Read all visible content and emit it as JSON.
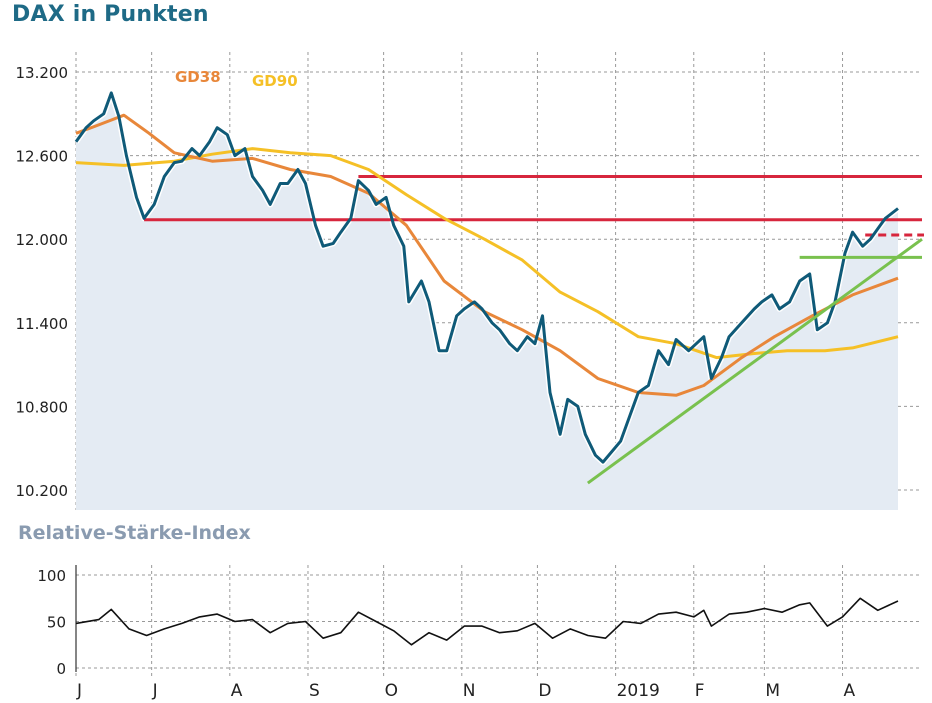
{
  "title": "DAX in Punkten",
  "rsi_title": "Relative-Stärke-Index",
  "colors": {
    "dax": "#0f5a78",
    "gd38": "#e8873a",
    "gd90": "#f5c026",
    "resistance": "#d7263d",
    "support": "#79c14e",
    "fill": "#e4ebf3"
  },
  "chart_data": [
    {
      "type": "line",
      "title": "DAX in Punkten",
      "x_range": [
        "2018-06-01",
        "2019-04-23"
      ],
      "ylim": [
        10200,
        13200
      ],
      "yticks": [
        10200,
        10800,
        11400,
        12000,
        12600,
        13200
      ],
      "ytick_labels": [
        "10.200",
        "10.800",
        "11.400",
        "12.000",
        "12.600",
        "13.200"
      ],
      "xtick_labels": [
        {
          "date": "2018-06-01",
          "label": "J"
        },
        {
          "date": "2018-07-01",
          "label": "J"
        },
        {
          "date": "2018-08-01",
          "label": "A"
        },
        {
          "date": "2018-09-01",
          "label": "S"
        },
        {
          "date": "2018-10-01",
          "label": "O"
        },
        {
          "date": "2018-11-01",
          "label": "N"
        },
        {
          "date": "2018-12-01",
          "label": "D"
        },
        {
          "date": "2019-01-01",
          "label": "2019"
        },
        {
          "date": "2019-02-01",
          "label": "F"
        },
        {
          "date": "2019-03-01",
          "label": "M"
        },
        {
          "date": "2019-04-01",
          "label": "A"
        }
      ],
      "grid": true,
      "series": [
        {
          "name": "DAX",
          "points": [
            [
              "2018-06-01",
              12700
            ],
            [
              "2018-06-05",
              12800
            ],
            [
              "2018-06-08",
              12850
            ],
            [
              "2018-06-12",
              12900
            ],
            [
              "2018-06-15",
              13050
            ],
            [
              "2018-06-18",
              12880
            ],
            [
              "2018-06-21",
              12600
            ],
            [
              "2018-06-25",
              12300
            ],
            [
              "2018-06-28",
              12150
            ],
            [
              "2018-07-02",
              12250
            ],
            [
              "2018-07-06",
              12450
            ],
            [
              "2018-07-10",
              12550
            ],
            [
              "2018-07-13",
              12560
            ],
            [
              "2018-07-17",
              12650
            ],
            [
              "2018-07-20",
              12600
            ],
            [
              "2018-07-24",
              12700
            ],
            [
              "2018-07-27",
              12800
            ],
            [
              "2018-07-31",
              12750
            ],
            [
              "2018-08-03",
              12600
            ],
            [
              "2018-08-07",
              12650
            ],
            [
              "2018-08-10",
              12450
            ],
            [
              "2018-08-14",
              12350
            ],
            [
              "2018-08-17",
              12250
            ],
            [
              "2018-08-21",
              12400
            ],
            [
              "2018-08-24",
              12400
            ],
            [
              "2018-08-28",
              12500
            ],
            [
              "2018-08-31",
              12400
            ],
            [
              "2018-09-04",
              12100
            ],
            [
              "2018-09-07",
              11950
            ],
            [
              "2018-09-11",
              11970
            ],
            [
              "2018-09-14",
              12050
            ],
            [
              "2018-09-18",
              12150
            ],
            [
              "2018-09-21",
              12420
            ],
            [
              "2018-09-25",
              12350
            ],
            [
              "2018-09-28",
              12250
            ],
            [
              "2018-10-02",
              12300
            ],
            [
              "2018-10-05",
              12100
            ],
            [
              "2018-10-09",
              11950
            ],
            [
              "2018-10-11",
              11550
            ],
            [
              "2018-10-16",
              11700
            ],
            [
              "2018-10-19",
              11550
            ],
            [
              "2018-10-23",
              11200
            ],
            [
              "2018-10-26",
              11200
            ],
            [
              "2018-10-30",
              11450
            ],
            [
              "2018-11-02",
              11500
            ],
            [
              "2018-11-06",
              11550
            ],
            [
              "2018-11-09",
              11500
            ],
            [
              "2018-11-13",
              11400
            ],
            [
              "2018-11-16",
              11350
            ],
            [
              "2018-11-20",
              11250
            ],
            [
              "2018-11-23",
              11200
            ],
            [
              "2018-11-27",
              11300
            ],
            [
              "2018-11-30",
              11250
            ],
            [
              "2018-12-03",
              11450
            ],
            [
              "2018-12-06",
              10900
            ],
            [
              "2018-12-10",
              10600
            ],
            [
              "2018-12-13",
              10850
            ],
            [
              "2018-12-17",
              10800
            ],
            [
              "2018-12-20",
              10600
            ],
            [
              "2018-12-24",
              10450
            ],
            [
              "2018-12-27",
              10400
            ],
            [
              "2019-01-03",
              10550
            ],
            [
              "2019-01-07",
              10750
            ],
            [
              "2019-01-10",
              10900
            ],
            [
              "2019-01-14",
              10950
            ],
            [
              "2019-01-18",
              11200
            ],
            [
              "2019-01-22",
              11100
            ],
            [
              "2019-01-25",
              11280
            ],
            [
              "2019-01-30",
              11200
            ],
            [
              "2019-02-05",
              11300
            ],
            [
              "2019-02-08",
              11000
            ],
            [
              "2019-02-12",
              11150
            ],
            [
              "2019-02-15",
              11300
            ],
            [
              "2019-02-20",
              11400
            ],
            [
              "2019-02-25",
              11500
            ],
            [
              "2019-02-28",
              11550
            ],
            [
              "2019-03-04",
              11600
            ],
            [
              "2019-03-07",
              11500
            ],
            [
              "2019-03-11",
              11550
            ],
            [
              "2019-03-15",
              11700
            ],
            [
              "2019-03-19",
              11750
            ],
            [
              "2019-03-22",
              11350
            ],
            [
              "2019-03-26",
              11400
            ],
            [
              "2019-03-29",
              11550
            ],
            [
              "2019-04-02",
              11900
            ],
            [
              "2019-04-05",
              12050
            ],
            [
              "2019-04-09",
              11950
            ],
            [
              "2019-04-12",
              12000
            ],
            [
              "2019-04-16",
              12100
            ],
            [
              "2019-04-18",
              12150
            ],
            [
              "2019-04-23",
              12220
            ]
          ]
        },
        {
          "name": "GD38",
          "points": [
            [
              "2018-06-01",
              12760
            ],
            [
              "2018-06-10",
              12820
            ],
            [
              "2018-06-20",
              12890
            ],
            [
              "2018-06-30",
              12760
            ],
            [
              "2018-07-10",
              12620
            ],
            [
              "2018-07-25",
              12560
            ],
            [
              "2018-08-10",
              12580
            ],
            [
              "2018-08-25",
              12500
            ],
            [
              "2018-09-10",
              12450
            ],
            [
              "2018-09-25",
              12330
            ],
            [
              "2018-10-10",
              12100
            ],
            [
              "2018-10-25",
              11700
            ],
            [
              "2018-11-10",
              11480
            ],
            [
              "2018-11-25",
              11350
            ],
            [
              "2018-12-10",
              11200
            ],
            [
              "2018-12-25",
              11000
            ],
            [
              "2019-01-10",
              10900
            ],
            [
              "2019-01-25",
              10880
            ],
            [
              "2019-02-05",
              10950
            ],
            [
              "2019-02-20",
              11150
            ],
            [
              "2019-03-05",
              11300
            ],
            [
              "2019-03-20",
              11450
            ],
            [
              "2019-04-05",
              11600
            ],
            [
              "2019-04-23",
              11720
            ]
          ]
        },
        {
          "name": "GD90",
          "points": [
            [
              "2018-06-01",
              12550
            ],
            [
              "2018-06-20",
              12530
            ],
            [
              "2018-07-10",
              12560
            ],
            [
              "2018-07-25",
              12610
            ],
            [
              "2018-08-10",
              12650
            ],
            [
              "2018-08-25",
              12620
            ],
            [
              "2018-09-10",
              12600
            ],
            [
              "2018-09-25",
              12500
            ],
            [
              "2018-10-10",
              12320
            ],
            [
              "2018-10-25",
              12150
            ],
            [
              "2018-11-10",
              12000
            ],
            [
              "2018-11-25",
              11850
            ],
            [
              "2018-12-10",
              11620
            ],
            [
              "2018-12-25",
              11480
            ],
            [
              "2019-01-10",
              11300
            ],
            [
              "2019-01-25",
              11250
            ],
            [
              "2019-02-10",
              11150
            ],
            [
              "2019-02-25",
              11180
            ],
            [
              "2019-03-10",
              11200
            ],
            [
              "2019-03-25",
              11200
            ],
            [
              "2019-04-05",
              11220
            ],
            [
              "2019-04-23",
              11300
            ]
          ]
        }
      ],
      "resistance_lines": [
        {
          "from": "2018-09-21",
          "to": "2019-04-23",
          "y": 12450
        },
        {
          "from": "2018-06-28",
          "to": "2019-04-23",
          "y": 12140
        }
      ],
      "dashed_line": {
        "from": "2019-04-10",
        "to": "2019-04-23",
        "y": 12030
      },
      "support_lines": [
        {
          "from": "2019-03-15",
          "to": "2019-04-23",
          "y": 11870
        },
        {
          "from": "2018-12-21",
          "to": "2019-04-23",
          "y_from": 10250,
          "y_to": 12000
        }
      ]
    },
    {
      "type": "line",
      "title": "Relative-Stärke-Index",
      "ylim": [
        0,
        100
      ],
      "yticks": [
        0,
        50,
        100
      ],
      "ytick_labels": [
        "0",
        "50",
        "100"
      ],
      "series": [
        {
          "name": "RSI",
          "points": [
            [
              "2018-06-01",
              48
            ],
            [
              "2018-06-10",
              52
            ],
            [
              "2018-06-15",
              63
            ],
            [
              "2018-06-22",
              42
            ],
            [
              "2018-06-29",
              35
            ],
            [
              "2018-07-06",
              42
            ],
            [
              "2018-07-13",
              48
            ],
            [
              "2018-07-20",
              55
            ],
            [
              "2018-07-27",
              58
            ],
            [
              "2018-08-03",
              50
            ],
            [
              "2018-08-10",
              52
            ],
            [
              "2018-08-17",
              38
            ],
            [
              "2018-08-24",
              48
            ],
            [
              "2018-08-31",
              50
            ],
            [
              "2018-09-07",
              32
            ],
            [
              "2018-09-14",
              38
            ],
            [
              "2018-09-21",
              60
            ],
            [
              "2018-09-28",
              50
            ],
            [
              "2018-10-05",
              40
            ],
            [
              "2018-10-12",
              25
            ],
            [
              "2018-10-19",
              38
            ],
            [
              "2018-10-26",
              30
            ],
            [
              "2018-11-02",
              45
            ],
            [
              "2018-11-09",
              45
            ],
            [
              "2018-11-16",
              38
            ],
            [
              "2018-11-23",
              40
            ],
            [
              "2018-11-30",
              48
            ],
            [
              "2018-12-07",
              32
            ],
            [
              "2018-12-14",
              42
            ],
            [
              "2018-12-21",
              35
            ],
            [
              "2018-12-28",
              32
            ],
            [
              "2019-01-04",
              50
            ],
            [
              "2019-01-11",
              48
            ],
            [
              "2019-01-18",
              58
            ],
            [
              "2019-01-25",
              60
            ],
            [
              "2019-02-01",
              55
            ],
            [
              "2019-02-05",
              62
            ],
            [
              "2019-02-08",
              45
            ],
            [
              "2019-02-15",
              58
            ],
            [
              "2019-02-22",
              60
            ],
            [
              "2019-03-01",
              64
            ],
            [
              "2019-03-08",
              60
            ],
            [
              "2019-03-15",
              68
            ],
            [
              "2019-03-19",
              70
            ],
            [
              "2019-03-26",
              45
            ],
            [
              "2019-04-01",
              55
            ],
            [
              "2019-04-08",
              75
            ],
            [
              "2019-04-15",
              62
            ],
            [
              "2019-04-23",
              72
            ]
          ]
        }
      ]
    }
  ]
}
